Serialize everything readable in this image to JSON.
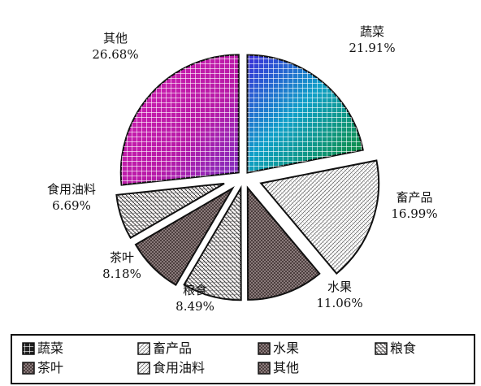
{
  "chart_data": {
    "type": "pie",
    "title": "",
    "slices": [
      {
        "label": "蔬菜",
        "value": 21.91,
        "display": "21.91%",
        "pattern": "grid",
        "color": "#1c2bd8"
      },
      {
        "label": "畜产品",
        "value": 16.99,
        "display": "16.99%",
        "pattern": "diag",
        "color": "#2a2a2a"
      },
      {
        "label": "水果",
        "value": 11.06,
        "display": "11.06%",
        "pattern": "dense",
        "color": "#3a2a2a"
      },
      {
        "label": "粮食",
        "value": 8.49,
        "display": "8.49%",
        "pattern": "hatch",
        "color": "#4a3a3a"
      },
      {
        "label": "茶叶",
        "value": 8.18,
        "display": "8.18%",
        "pattern": "dense",
        "color": "#5a2a2a"
      },
      {
        "label": "食用油料",
        "value": 6.69,
        "display": "6.69%",
        "pattern": "hatch",
        "color": "#3a3a3a"
      },
      {
        "label": "其他",
        "value": 26.68,
        "display": "26.68%",
        "pattern": "grid",
        "color": "#c81fb4"
      }
    ],
    "legend": {
      "placement": "bottom",
      "items": [
        "蔬菜",
        "畜产品",
        "水果",
        "粮食",
        "茶叶",
        "食用油料",
        "其他"
      ]
    }
  }
}
